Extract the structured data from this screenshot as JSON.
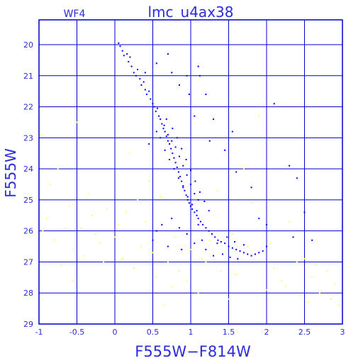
{
  "header": {
    "chip_label": "WF4",
    "title": "lmc_u4ax38"
  },
  "colors": {
    "axis": "#0000cc",
    "text": "#2b2bdc",
    "main_sequence": "#0000ff",
    "field": "#ffff66"
  },
  "chart_data": {
    "type": "scatter",
    "title": "lmc_u4ax38",
    "panel_label": "WF4",
    "xlabel": "F555W−F814W",
    "ylabel": "F555W",
    "xlim": [
      -1,
      3
    ],
    "ylim": [
      29,
      19.2
    ],
    "y_inverted": true,
    "grid": true,
    "x_ticks": [
      -1,
      -0.5,
      0,
      0.5,
      1,
      1.5,
      2,
      2.5,
      3
    ],
    "x_tick_labels": [
      "-1",
      "-0.5",
      "0",
      "0.5",
      "1",
      "1.5",
      "2",
      "2.5",
      "3"
    ],
    "y_ticks": [
      20,
      21,
      22,
      23,
      24,
      25,
      26,
      27,
      28,
      29
    ],
    "y_tick_labels": [
      "20",
      "21",
      "22",
      "23",
      "24",
      "25",
      "26",
      "27",
      "28",
      "29"
    ],
    "series": [
      {
        "color": "#0000ff",
        "marker": "dot",
        "points": [
          [
            0.05,
            19.95
          ],
          [
            0.07,
            20.05
          ],
          [
            0.1,
            20.2
          ],
          [
            0.12,
            20.35
          ],
          [
            0.16,
            20.3
          ],
          [
            0.18,
            20.55
          ],
          [
            0.2,
            20.4
          ],
          [
            0.22,
            20.7
          ],
          [
            0.25,
            20.9
          ],
          [
            0.28,
            21.0
          ],
          [
            0.3,
            20.8
          ],
          [
            0.33,
            21.1
          ],
          [
            0.35,
            21.3
          ],
          [
            0.38,
            21.2
          ],
          [
            0.4,
            21.45
          ],
          [
            0.42,
            21.6
          ],
          [
            0.45,
            21.5
          ],
          [
            0.47,
            21.75
          ],
          [
            0.5,
            21.9
          ],
          [
            0.52,
            22.0
          ],
          [
            0.54,
            22.15
          ],
          [
            0.56,
            22.05
          ],
          [
            0.58,
            22.3
          ],
          [
            0.6,
            22.4
          ],
          [
            0.62,
            22.55
          ],
          [
            0.64,
            22.7
          ],
          [
            0.66,
            22.8
          ],
          [
            0.68,
            22.95
          ],
          [
            0.7,
            23.1
          ],
          [
            0.72,
            23.2
          ],
          [
            0.74,
            23.35
          ],
          [
            0.76,
            23.5
          ],
          [
            0.78,
            23.65
          ],
          [
            0.8,
            23.8
          ],
          [
            0.82,
            23.95
          ],
          [
            0.84,
            24.1
          ],
          [
            0.86,
            24.25
          ],
          [
            0.88,
            24.4
          ],
          [
            0.9,
            24.55
          ],
          [
            0.92,
            24.7
          ],
          [
            0.94,
            24.85
          ],
          [
            0.96,
            25.0
          ],
          [
            0.98,
            25.1
          ],
          [
            1.0,
            25.2
          ],
          [
            1.02,
            25.3
          ],
          [
            1.05,
            25.4
          ],
          [
            1.08,
            25.5
          ],
          [
            1.1,
            25.6
          ],
          [
            1.13,
            25.7
          ],
          [
            1.16,
            25.8
          ],
          [
            1.2,
            25.9
          ],
          [
            1.24,
            26.0
          ],
          [
            1.28,
            26.1
          ],
          [
            1.32,
            26.2
          ],
          [
            1.36,
            26.3
          ],
          [
            1.4,
            26.35
          ],
          [
            1.45,
            26.4
          ],
          [
            1.5,
            26.5
          ],
          [
            1.55,
            26.55
          ],
          [
            1.6,
            26.6
          ],
          [
            1.65,
            26.65
          ],
          [
            1.7,
            26.7
          ],
          [
            1.75,
            26.75
          ],
          [
            1.8,
            26.8
          ],
          [
            1.85,
            26.75
          ],
          [
            1.9,
            26.7
          ],
          [
            1.95,
            26.65
          ],
          [
            2.0,
            26.5
          ],
          [
            0.65,
            22.6
          ],
          [
            0.7,
            22.9
          ],
          [
            0.75,
            23.1
          ],
          [
            0.8,
            23.3
          ],
          [
            0.85,
            23.6
          ],
          [
            0.9,
            23.9
          ],
          [
            0.95,
            24.2
          ],
          [
            1.0,
            24.5
          ],
          [
            1.05,
            24.8
          ],
          [
            1.1,
            25.0
          ],
          [
            0.55,
            22.8
          ],
          [
            0.6,
            23.0
          ],
          [
            0.66,
            23.4
          ],
          [
            0.72,
            23.7
          ],
          [
            0.78,
            24.0
          ],
          [
            0.84,
            24.3
          ],
          [
            0.9,
            24.6
          ],
          [
            0.96,
            24.9
          ],
          [
            1.02,
            25.15
          ],
          [
            1.08,
            25.35
          ],
          [
            0.68,
            22.4
          ],
          [
            0.76,
            22.7
          ],
          [
            0.82,
            23.0
          ],
          [
            0.88,
            23.35
          ],
          [
            0.94,
            23.7
          ],
          [
            1.0,
            24.05
          ],
          [
            1.06,
            24.4
          ],
          [
            1.12,
            24.75
          ],
          [
            1.18,
            25.05
          ],
          [
            1.24,
            25.35
          ],
          [
            1.15,
            26.3
          ],
          [
            1.2,
            26.6
          ],
          [
            1.3,
            26.8
          ],
          [
            1.35,
            26.4
          ],
          [
            1.42,
            26.75
          ],
          [
            1.48,
            26.2
          ],
          [
            1.52,
            26.85
          ],
          [
            1.58,
            26.35
          ],
          [
            1.62,
            26.9
          ],
          [
            1.7,
            26.45
          ],
          [
            0.85,
            25.9
          ],
          [
            0.95,
            26.1
          ],
          [
            1.05,
            26.4
          ],
          [
            1.1,
            25.8
          ],
          [
            0.75,
            25.6
          ],
          [
            0.62,
            25.8
          ],
          [
            0.55,
            26.0
          ],
          [
            0.5,
            26.3
          ],
          [
            0.7,
            26.5
          ],
          [
            0.88,
            26.6
          ],
          [
            0.4,
            20.9
          ],
          [
            0.55,
            20.6
          ],
          [
            0.7,
            20.3
          ],
          [
            0.75,
            20.9
          ],
          [
            0.95,
            21.0
          ],
          [
            1.1,
            20.7
          ],
          [
            0.85,
            21.3
          ],
          [
            1.2,
            21.6
          ],
          [
            1.05,
            22.3
          ],
          [
            1.25,
            23.1
          ],
          [
            1.45,
            23.4
          ],
          [
            1.6,
            24.1
          ],
          [
            0.45,
            23.2
          ],
          [
            2.1,
            21.9
          ],
          [
            2.3,
            23.9
          ],
          [
            2.4,
            24.3
          ],
          [
            2.5,
            25.4
          ],
          [
            2.35,
            26.2
          ],
          [
            2.6,
            26.3
          ],
          [
            2.0,
            25.8
          ],
          [
            1.9,
            25.6
          ],
          [
            1.8,
            24.6
          ],
          [
            1.55,
            22.8
          ],
          [
            1.3,
            22.4
          ],
          [
            0.98,
            21.6
          ],
          [
            1.12,
            21.0
          ]
        ]
      },
      {
        "color": "#ffff66",
        "marker": "dot",
        "points": [
          [
            -0.95,
            26.0
          ],
          [
            -0.9,
            25.6
          ],
          [
            -0.85,
            24.5
          ],
          [
            -0.8,
            26.3
          ],
          [
            -0.7,
            27.1
          ],
          [
            -0.6,
            25.2
          ],
          [
            -0.55,
            26.6
          ],
          [
            -0.5,
            22.5
          ],
          [
            -0.45,
            25.9
          ],
          [
            -0.4,
            26.8
          ],
          [
            -0.35,
            24.8
          ],
          [
            -0.3,
            25.5
          ],
          [
            -0.2,
            26.4
          ],
          [
            -0.15,
            27.0
          ],
          [
            -0.1,
            25.3
          ],
          [
            0.0,
            26.2
          ],
          [
            0.05,
            25.8
          ],
          [
            0.1,
            26.9
          ],
          [
            0.15,
            25.4
          ],
          [
            0.2,
            23.5
          ],
          [
            0.25,
            27.2
          ],
          [
            0.3,
            25.0
          ],
          [
            0.35,
            26.5
          ],
          [
            0.45,
            24.4
          ],
          [
            0.55,
            27.5
          ],
          [
            0.6,
            24.9
          ],
          [
            0.65,
            28.4
          ],
          [
            0.75,
            27.8
          ],
          [
            0.85,
            27.3
          ],
          [
            0.95,
            27.6
          ],
          [
            1.1,
            28.0
          ],
          [
            1.2,
            27.0
          ],
          [
            1.35,
            24.7
          ],
          [
            1.5,
            28.2
          ],
          [
            1.6,
            27.4
          ],
          [
            1.7,
            24.0
          ],
          [
            1.8,
            25.1
          ],
          [
            1.9,
            22.3
          ],
          [
            2.0,
            27.9
          ],
          [
            2.1,
            27.2
          ],
          [
            2.2,
            27.6
          ],
          [
            2.3,
            25.7
          ],
          [
            2.4,
            27.0
          ],
          [
            2.5,
            26.9
          ],
          [
            2.55,
            28.3
          ],
          [
            2.6,
            27.5
          ],
          [
            2.7,
            28.0
          ],
          [
            2.8,
            27.3
          ],
          [
            2.85,
            28.2
          ],
          [
            2.95,
            28.4
          ],
          [
            -0.98,
            22.9
          ],
          [
            -0.75,
            24.0
          ],
          [
            -0.65,
            25.9
          ],
          [
            -0.25,
            26.1
          ],
          [
            0.4,
            25.7
          ],
          [
            0.5,
            26.7
          ],
          [
            0.7,
            27.0
          ],
          [
            0.8,
            26.2
          ],
          [
            1.0,
            26.6
          ],
          [
            1.15,
            26.9
          ],
          [
            1.25,
            26.3
          ],
          [
            1.4,
            27.3
          ],
          [
            1.55,
            26.1
          ],
          [
            1.75,
            26.5
          ],
          [
            2.05,
            26.4
          ],
          [
            2.25,
            27.8
          ],
          [
            2.45,
            28.1
          ],
          [
            2.65,
            27.1
          ],
          [
            2.9,
            27.7
          ],
          [
            -0.55,
            27.6
          ]
        ]
      }
    ]
  }
}
